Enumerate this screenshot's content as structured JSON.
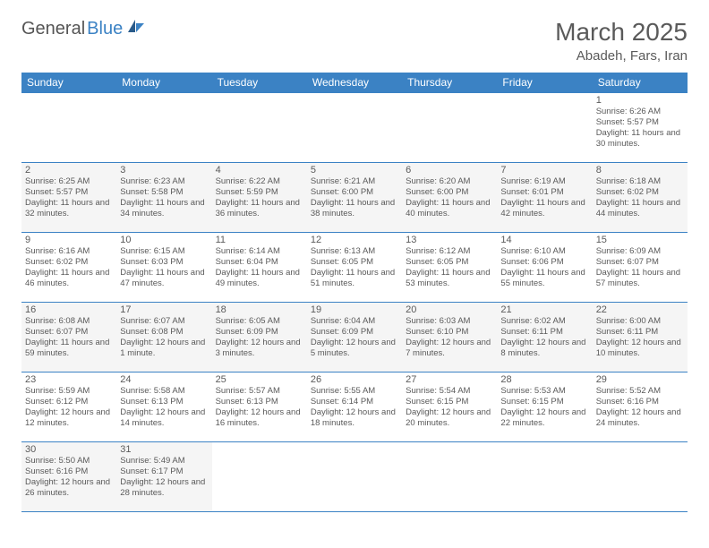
{
  "logo": {
    "general": "General",
    "blue": "Blue"
  },
  "title": "March 2025",
  "location": "Abadeh, Fars, Iran",
  "colors": {
    "header_bg": "#3b82c4",
    "header_text": "#ffffff",
    "text": "#5a5a5a",
    "shaded_bg": "#f5f5f5",
    "border": "#3b82c4"
  },
  "weekdays": [
    "Sunday",
    "Monday",
    "Tuesday",
    "Wednesday",
    "Thursday",
    "Friday",
    "Saturday"
  ],
  "weeks": [
    [
      {
        "empty": true
      },
      {
        "empty": true
      },
      {
        "empty": true
      },
      {
        "empty": true
      },
      {
        "empty": true
      },
      {
        "empty": true
      },
      {
        "day": "1",
        "sunrise": "Sunrise: 6:26 AM",
        "sunset": "Sunset: 5:57 PM",
        "daylight": "Daylight: 11 hours and 30 minutes."
      }
    ],
    [
      {
        "day": "2",
        "sunrise": "Sunrise: 6:25 AM",
        "sunset": "Sunset: 5:57 PM",
        "daylight": "Daylight: 11 hours and 32 minutes.",
        "shaded": true
      },
      {
        "day": "3",
        "sunrise": "Sunrise: 6:23 AM",
        "sunset": "Sunset: 5:58 PM",
        "daylight": "Daylight: 11 hours and 34 minutes.",
        "shaded": true
      },
      {
        "day": "4",
        "sunrise": "Sunrise: 6:22 AM",
        "sunset": "Sunset: 5:59 PM",
        "daylight": "Daylight: 11 hours and 36 minutes.",
        "shaded": true
      },
      {
        "day": "5",
        "sunrise": "Sunrise: 6:21 AM",
        "sunset": "Sunset: 6:00 PM",
        "daylight": "Daylight: 11 hours and 38 minutes.",
        "shaded": true
      },
      {
        "day": "6",
        "sunrise": "Sunrise: 6:20 AM",
        "sunset": "Sunset: 6:00 PM",
        "daylight": "Daylight: 11 hours and 40 minutes.",
        "shaded": true
      },
      {
        "day": "7",
        "sunrise": "Sunrise: 6:19 AM",
        "sunset": "Sunset: 6:01 PM",
        "daylight": "Daylight: 11 hours and 42 minutes.",
        "shaded": true
      },
      {
        "day": "8",
        "sunrise": "Sunrise: 6:18 AM",
        "sunset": "Sunset: 6:02 PM",
        "daylight": "Daylight: 11 hours and 44 minutes.",
        "shaded": true
      }
    ],
    [
      {
        "day": "9",
        "sunrise": "Sunrise: 6:16 AM",
        "sunset": "Sunset: 6:02 PM",
        "daylight": "Daylight: 11 hours and 46 minutes."
      },
      {
        "day": "10",
        "sunrise": "Sunrise: 6:15 AM",
        "sunset": "Sunset: 6:03 PM",
        "daylight": "Daylight: 11 hours and 47 minutes."
      },
      {
        "day": "11",
        "sunrise": "Sunrise: 6:14 AM",
        "sunset": "Sunset: 6:04 PM",
        "daylight": "Daylight: 11 hours and 49 minutes."
      },
      {
        "day": "12",
        "sunrise": "Sunrise: 6:13 AM",
        "sunset": "Sunset: 6:05 PM",
        "daylight": "Daylight: 11 hours and 51 minutes."
      },
      {
        "day": "13",
        "sunrise": "Sunrise: 6:12 AM",
        "sunset": "Sunset: 6:05 PM",
        "daylight": "Daylight: 11 hours and 53 minutes."
      },
      {
        "day": "14",
        "sunrise": "Sunrise: 6:10 AM",
        "sunset": "Sunset: 6:06 PM",
        "daylight": "Daylight: 11 hours and 55 minutes."
      },
      {
        "day": "15",
        "sunrise": "Sunrise: 6:09 AM",
        "sunset": "Sunset: 6:07 PM",
        "daylight": "Daylight: 11 hours and 57 minutes."
      }
    ],
    [
      {
        "day": "16",
        "sunrise": "Sunrise: 6:08 AM",
        "sunset": "Sunset: 6:07 PM",
        "daylight": "Daylight: 11 hours and 59 minutes.",
        "shaded": true
      },
      {
        "day": "17",
        "sunrise": "Sunrise: 6:07 AM",
        "sunset": "Sunset: 6:08 PM",
        "daylight": "Daylight: 12 hours and 1 minute.",
        "shaded": true
      },
      {
        "day": "18",
        "sunrise": "Sunrise: 6:05 AM",
        "sunset": "Sunset: 6:09 PM",
        "daylight": "Daylight: 12 hours and 3 minutes.",
        "shaded": true
      },
      {
        "day": "19",
        "sunrise": "Sunrise: 6:04 AM",
        "sunset": "Sunset: 6:09 PM",
        "daylight": "Daylight: 12 hours and 5 minutes.",
        "shaded": true
      },
      {
        "day": "20",
        "sunrise": "Sunrise: 6:03 AM",
        "sunset": "Sunset: 6:10 PM",
        "daylight": "Daylight: 12 hours and 7 minutes.",
        "shaded": true
      },
      {
        "day": "21",
        "sunrise": "Sunrise: 6:02 AM",
        "sunset": "Sunset: 6:11 PM",
        "daylight": "Daylight: 12 hours and 8 minutes.",
        "shaded": true
      },
      {
        "day": "22",
        "sunrise": "Sunrise: 6:00 AM",
        "sunset": "Sunset: 6:11 PM",
        "daylight": "Daylight: 12 hours and 10 minutes.",
        "shaded": true
      }
    ],
    [
      {
        "day": "23",
        "sunrise": "Sunrise: 5:59 AM",
        "sunset": "Sunset: 6:12 PM",
        "daylight": "Daylight: 12 hours and 12 minutes."
      },
      {
        "day": "24",
        "sunrise": "Sunrise: 5:58 AM",
        "sunset": "Sunset: 6:13 PM",
        "daylight": "Daylight: 12 hours and 14 minutes."
      },
      {
        "day": "25",
        "sunrise": "Sunrise: 5:57 AM",
        "sunset": "Sunset: 6:13 PM",
        "daylight": "Daylight: 12 hours and 16 minutes."
      },
      {
        "day": "26",
        "sunrise": "Sunrise: 5:55 AM",
        "sunset": "Sunset: 6:14 PM",
        "daylight": "Daylight: 12 hours and 18 minutes."
      },
      {
        "day": "27",
        "sunrise": "Sunrise: 5:54 AM",
        "sunset": "Sunset: 6:15 PM",
        "daylight": "Daylight: 12 hours and 20 minutes."
      },
      {
        "day": "28",
        "sunrise": "Sunrise: 5:53 AM",
        "sunset": "Sunset: 6:15 PM",
        "daylight": "Daylight: 12 hours and 22 minutes."
      },
      {
        "day": "29",
        "sunrise": "Sunrise: 5:52 AM",
        "sunset": "Sunset: 6:16 PM",
        "daylight": "Daylight: 12 hours and 24 minutes."
      }
    ],
    [
      {
        "day": "30",
        "sunrise": "Sunrise: 5:50 AM",
        "sunset": "Sunset: 6:16 PM",
        "daylight": "Daylight: 12 hours and 26 minutes.",
        "shaded": true
      },
      {
        "day": "31",
        "sunrise": "Sunrise: 5:49 AM",
        "sunset": "Sunset: 6:17 PM",
        "daylight": "Daylight: 12 hours and 28 minutes.",
        "shaded": true
      },
      {
        "empty": true
      },
      {
        "empty": true
      },
      {
        "empty": true
      },
      {
        "empty": true
      },
      {
        "empty": true
      }
    ]
  ]
}
